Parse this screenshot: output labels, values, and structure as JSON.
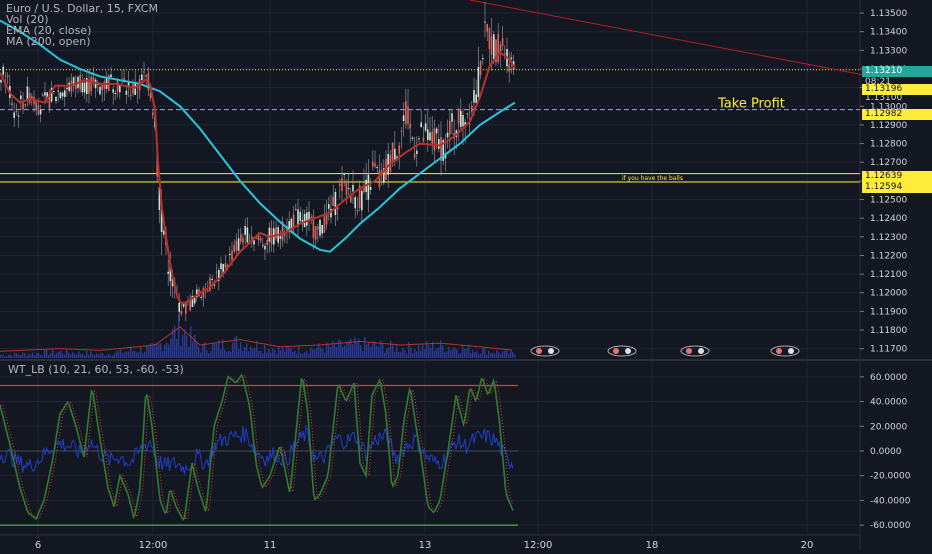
{
  "legend": {
    "symbol": "Euro / U.S. Dollar, 15, FXCM",
    "vol": "Vol (20)",
    "ema": "EMA (20, close)",
    "ma": "MA (200, open)"
  },
  "oscillator_legend": "WT_LB (10, 21, 60, 53, -60, -53)",
  "annotations": {
    "take_profit": "Take Profit",
    "balls": "if you have the balls"
  },
  "price_labels": {
    "last": "1.13210",
    "countdown": "08:21",
    "l1": "1.13196",
    "l2": "1.13100",
    "l3": "1.12982",
    "l4": "1.12639",
    "l5": "1.12594"
  },
  "colors": {
    "background": "#131722",
    "ema": "#b7312c",
    "ma": "#26c6da",
    "volume": "#2c3ea8",
    "wave_green": "#2e7d32",
    "wave_red": "#e53935",
    "wave_blue": "#1f3fc8",
    "level_yellow": "#ffeb3b",
    "level_teal": "#4dd0e1",
    "overbought": "#e53935",
    "oversold": "#4caf50"
  },
  "chart_data": [
    {
      "type": "candlestick",
      "title": "Euro / U.S. Dollar, 15, FXCM",
      "x_tick_labels": [
        "6",
        "12:00",
        "11",
        "13",
        "12:00",
        "18",
        "20"
      ],
      "y_tick_labels": [
        "1.13500",
        "1.13400",
        "1.13300",
        "1.13200",
        "1.13100",
        "1.13000",
        "1.12900",
        "1.12800",
        "1.12700",
        "1.12600",
        "1.12500",
        "1.12400",
        "1.12300",
        "1.12200",
        "1.12100",
        "1.12000",
        "1.11900",
        "1.11800",
        "1.11700"
      ],
      "ylim": [
        1.1165,
        1.1357
      ],
      "grid": true,
      "horizontal_levels": [
        {
          "value": 1.13196,
          "label": "1.13196",
          "style": "dotted",
          "color": "#ffeb3b"
        },
        {
          "value": 1.12982,
          "label": "1.12982",
          "style": "dashed",
          "color": "#4dd0e1",
          "annotation": "Take Profit"
        },
        {
          "value": 1.12639,
          "label": "1.12639",
          "style": "solid",
          "color": "#ffeb3b"
        },
        {
          "value": 1.12594,
          "label": "1.12594",
          "style": "solid",
          "color": "#ffeb3b",
          "annotation": "if you have the balls"
        }
      ],
      "last_price": 1.1321,
      "ema_20_close": [
        [
          0,
          1.1318
        ],
        [
          10,
          1.1307
        ],
        [
          20,
          1.1302
        ],
        [
          30,
          1.1304
        ],
        [
          45,
          1.1302
        ],
        [
          55,
          1.1311
        ],
        [
          70,
          1.1311
        ],
        [
          85,
          1.1314
        ],
        [
          100,
          1.1312
        ],
        [
          115,
          1.1312
        ],
        [
          135,
          1.131
        ],
        [
          145,
          1.1314
        ],
        [
          150,
          1.1312
        ],
        [
          155,
          1.1298
        ],
        [
          158,
          1.127
        ],
        [
          162,
          1.1245
        ],
        [
          166,
          1.123
        ],
        [
          170,
          1.1216
        ],
        [
          174,
          1.1205
        ],
        [
          178,
          1.1197
        ],
        [
          182,
          1.1194
        ],
        [
          190,
          1.1196
        ],
        [
          200,
          1.12
        ],
        [
          210,
          1.1203
        ],
        [
          220,
          1.1208
        ],
        [
          230,
          1.1215
        ],
        [
          240,
          1.1222
        ],
        [
          250,
          1.1227
        ],
        [
          260,
          1.1232
        ],
        [
          270,
          1.123
        ],
        [
          285,
          1.1232
        ],
        [
          300,
          1.1237
        ],
        [
          315,
          1.124
        ],
        [
          330,
          1.1243
        ],
        [
          345,
          1.125
        ],
        [
          360,
          1.1256
        ],
        [
          375,
          1.126
        ],
        [
          390,
          1.1269
        ],
        [
          405,
          1.1275
        ],
        [
          420,
          1.128
        ],
        [
          440,
          1.1279
        ],
        [
          455,
          1.1284
        ],
        [
          470,
          1.1292
        ],
        [
          480,
          1.1305
        ],
        [
          490,
          1.1322
        ],
        [
          500,
          1.1329
        ],
        [
          510,
          1.1325
        ],
        [
          515,
          1.132
        ]
      ],
      "ma_200_open": [
        [
          0,
          1.1346
        ],
        [
          20,
          1.134
        ],
        [
          40,
          1.1333
        ],
        [
          60,
          1.1325
        ],
        [
          80,
          1.132
        ],
        [
          100,
          1.1316
        ],
        [
          120,
          1.1314
        ],
        [
          140,
          1.1312
        ],
        [
          160,
          1.1308
        ],
        [
          180,
          1.13
        ],
        [
          200,
          1.1288
        ],
        [
          220,
          1.1274
        ],
        [
          240,
          1.126
        ],
        [
          260,
          1.1248
        ],
        [
          280,
          1.1238
        ],
        [
          300,
          1.1229
        ],
        [
          320,
          1.1223
        ],
        [
          330,
          1.1222
        ],
        [
          345,
          1.1229
        ],
        [
          360,
          1.1237
        ],
        [
          380,
          1.1246
        ],
        [
          400,
          1.1256
        ],
        [
          420,
          1.1264
        ],
        [
          440,
          1.1272
        ],
        [
          460,
          1.128
        ],
        [
          480,
          1.129
        ],
        [
          500,
          1.1297
        ],
        [
          515,
          1.1302
        ]
      ],
      "trendline": [
        [
          470,
          1.1357
        ],
        [
          862,
          1.1317
        ]
      ],
      "price_path": [
        [
          0,
          1.1318
        ],
        [
          8,
          1.1313
        ],
        [
          15,
          1.1296
        ],
        [
          22,
          1.1302
        ],
        [
          30,
          1.1307
        ],
        [
          40,
          1.13
        ],
        [
          50,
          1.1304
        ],
        [
          60,
          1.1309
        ],
        [
          70,
          1.131
        ],
        [
          80,
          1.1314
        ],
        [
          90,
          1.1311
        ],
        [
          100,
          1.1311
        ],
        [
          110,
          1.1313
        ],
        [
          120,
          1.1312
        ],
        [
          135,
          1.1308
        ],
        [
          145,
          1.1316
        ],
        [
          150,
          1.1311
        ],
        [
          155,
          1.1295
        ],
        [
          158,
          1.1262
        ],
        [
          162,
          1.124
        ],
        [
          166,
          1.1225
        ],
        [
          170,
          1.1212
        ],
        [
          174,
          1.1202
        ],
        [
          178,
          1.1194
        ],
        [
          184,
          1.1191
        ],
        [
          190,
          1.1194
        ],
        [
          198,
          1.1199
        ],
        [
          206,
          1.1203
        ],
        [
          214,
          1.1207
        ],
        [
          222,
          1.1212
        ],
        [
          230,
          1.1219
        ],
        [
          238,
          1.1226
        ],
        [
          246,
          1.1232
        ],
        [
          254,
          1.123
        ],
        [
          262,
          1.1227
        ],
        [
          270,
          1.123
        ],
        [
          278,
          1.1231
        ],
        [
          286,
          1.1235
        ],
        [
          294,
          1.124
        ],
        [
          302,
          1.124
        ],
        [
          310,
          1.1238
        ],
        [
          318,
          1.1232
        ],
        [
          326,
          1.124
        ],
        [
          334,
          1.1246
        ],
        [
          342,
          1.1258
        ],
        [
          350,
          1.1255
        ],
        [
          358,
          1.125
        ],
        [
          366,
          1.1254
        ],
        [
          374,
          1.1266
        ],
        [
          382,
          1.1258
        ],
        [
          390,
          1.1272
        ],
        [
          398,
          1.128
        ],
        [
          406,
          1.1295
        ],
        [
          414,
          1.128
        ],
        [
          422,
          1.1284
        ],
        [
          430,
          1.1282
        ],
        [
          438,
          1.128
        ],
        [
          446,
          1.1279
        ],
        [
          454,
          1.129
        ],
        [
          462,
          1.1293
        ],
        [
          470,
          1.13
        ],
        [
          478,
          1.1312
        ],
        [
          484,
          1.1337
        ],
        [
          490,
          1.1336
        ],
        [
          496,
          1.1331
        ],
        [
          502,
          1.1334
        ],
        [
          508,
          1.1327
        ],
        [
          514,
          1.1321
        ]
      ],
      "candle_spread": [
        [
          0,
          8
        ],
        [
          150,
          8
        ],
        [
          155,
          20
        ],
        [
          180,
          6
        ],
        [
          300,
          8
        ],
        [
          380,
          12
        ],
        [
          480,
          14
        ],
        [
          515,
          10
        ]
      ],
      "volume": [
        [
          0,
          3
        ],
        [
          60,
          6
        ],
        [
          100,
          4
        ],
        [
          155,
          10
        ],
        [
          170,
          22
        ],
        [
          180,
          30
        ],
        [
          200,
          10
        ],
        [
          240,
          16
        ],
        [
          280,
          8
        ],
        [
          320,
          10
        ],
        [
          360,
          14
        ],
        [
          400,
          10
        ],
        [
          440,
          12
        ],
        [
          480,
          8
        ],
        [
          515,
          4
        ]
      ]
    },
    {
      "type": "line",
      "title": "WT_LB (10, 21, 60, 53, -60, -53)",
      "y_tick_labels": [
        "60.0000",
        "40.0000",
        "20.0000",
        "0.0000",
        "-20.0000",
        "-40.0000",
        "-60.0000"
      ],
      "ylim": [
        -68,
        72
      ],
      "reference_lines": {
        "overbought": 53,
        "oversold": -60
      },
      "wave_green": [
        [
          0,
          37
        ],
        [
          10,
          5
        ],
        [
          20,
          -30
        ],
        [
          28,
          -50
        ],
        [
          36,
          -55
        ],
        [
          44,
          -40
        ],
        [
          52,
          -10
        ],
        [
          60,
          30
        ],
        [
          68,
          40
        ],
        [
          76,
          20
        ],
        [
          84,
          -5
        ],
        [
          92,
          52
        ],
        [
          100,
          10
        ],
        [
          108,
          -30
        ],
        [
          114,
          -45
        ],
        [
          120,
          -20
        ],
        [
          128,
          -35
        ],
        [
          134,
          -55
        ],
        [
          140,
          -30
        ],
        [
          146,
          50
        ],
        [
          152,
          20
        ],
        [
          160,
          -40
        ],
        [
          166,
          -52
        ],
        [
          170,
          -30
        ],
        [
          176,
          -45
        ],
        [
          184,
          -57
        ],
        [
          192,
          -10
        ],
        [
          198,
          -30
        ],
        [
          206,
          -50
        ],
        [
          214,
          20
        ],
        [
          222,
          40
        ],
        [
          228,
          60
        ],
        [
          236,
          55
        ],
        [
          242,
          62
        ],
        [
          250,
          35
        ],
        [
          256,
          -10
        ],
        [
          262,
          -30
        ],
        [
          270,
          -20
        ],
        [
          280,
          5
        ],
        [
          290,
          -35
        ],
        [
          296,
          15
        ],
        [
          302,
          62
        ],
        [
          308,
          30
        ],
        [
          314,
          -40
        ],
        [
          320,
          -35
        ],
        [
          328,
          -20
        ],
        [
          338,
          55
        ],
        [
          346,
          40
        ],
        [
          354,
          55
        ],
        [
          360,
          -10
        ],
        [
          366,
          -20
        ],
        [
          372,
          45
        ],
        [
          380,
          58
        ],
        [
          386,
          30
        ],
        [
          392,
          -30
        ],
        [
          398,
          -20
        ],
        [
          404,
          25
        ],
        [
          410,
          52
        ],
        [
          416,
          20
        ],
        [
          422,
          -10
        ],
        [
          428,
          -45
        ],
        [
          434,
          -50
        ],
        [
          440,
          -40
        ],
        [
          448,
          0
        ],
        [
          456,
          45
        ],
        [
          464,
          20
        ],
        [
          470,
          52
        ],
        [
          476,
          40
        ],
        [
          482,
          60
        ],
        [
          488,
          45
        ],
        [
          494,
          58
        ],
        [
          500,
          20
        ],
        [
          506,
          -35
        ],
        [
          514,
          -50
        ]
      ],
      "wave_blue": [
        [
          0,
          -2
        ],
        [
          10,
          -4
        ],
        [
          20,
          -10
        ],
        [
          30,
          -12
        ],
        [
          40,
          -6
        ],
        [
          50,
          2
        ],
        [
          60,
          6
        ],
        [
          70,
          4
        ],
        [
          80,
          -2
        ],
        [
          90,
          8
        ],
        [
          100,
          -2
        ],
        [
          110,
          -8
        ],
        [
          120,
          -4
        ],
        [
          130,
          -10
        ],
        [
          140,
          0
        ],
        [
          150,
          8
        ],
        [
          158,
          -8
        ],
        [
          166,
          -12
        ],
        [
          176,
          -10
        ],
        [
          186,
          -14
        ],
        [
          196,
          -4
        ],
        [
          206,
          -10
        ],
        [
          216,
          6
        ],
        [
          226,
          10
        ],
        [
          236,
          12
        ],
        [
          246,
          14
        ],
        [
          256,
          0
        ],
        [
          266,
          -6
        ],
        [
          276,
          -2
        ],
        [
          286,
          -8
        ],
        [
          296,
          6
        ],
        [
          306,
          14
        ],
        [
          316,
          -8
        ],
        [
          326,
          -4
        ],
        [
          336,
          10
        ],
        [
          346,
          8
        ],
        [
          356,
          12
        ],
        [
          366,
          -2
        ],
        [
          376,
          10
        ],
        [
          386,
          12
        ],
        [
          396,
          -6
        ],
        [
          406,
          4
        ],
        [
          416,
          10
        ],
        [
          426,
          -4
        ],
        [
          436,
          -10
        ],
        [
          446,
          -6
        ],
        [
          456,
          8
        ],
        [
          466,
          4
        ],
        [
          476,
          10
        ],
        [
          486,
          12
        ],
        [
          496,
          8
        ],
        [
          506,
          -6
        ],
        [
          514,
          -10
        ]
      ]
    }
  ]
}
